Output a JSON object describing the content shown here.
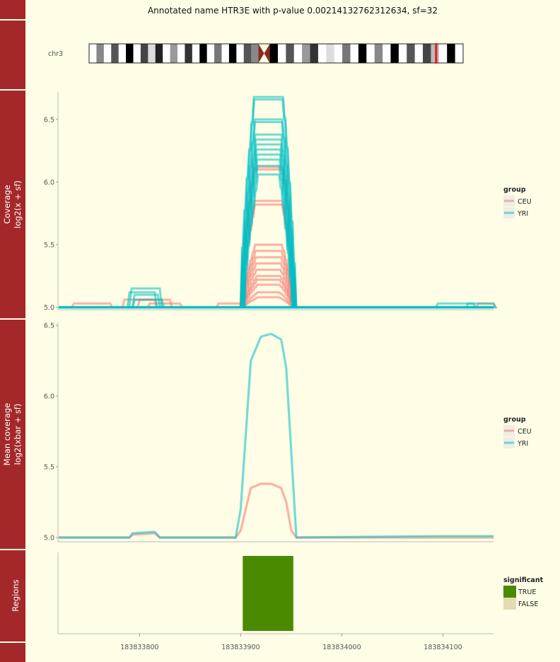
{
  "title": "Annotated name HTR3E with p-value 0.00214132762312634, sf=32",
  "ideogram": {
    "chrom_label": "chr3"
  },
  "colors": {
    "background": "#fffde6",
    "strip": "#a4282a",
    "CEU": "#f8766d",
    "YRI": "#00bfc4",
    "sig_true": "#4a8a00",
    "sig_false": "#e6dab1",
    "highlight": "#e41a1c"
  },
  "x_axis": {
    "range": [
      183833720,
      183834150
    ],
    "ticks": [
      183833800,
      183833900,
      183834000,
      183834100
    ],
    "tick_labels": [
      "183833800",
      "183833900",
      "183834000",
      "183834100"
    ]
  },
  "chart_data": [
    {
      "type": "line",
      "panel": "Coverage",
      "strip_label": [
        "Coverage",
        "log2(x + sf)"
      ],
      "ylim": [
        4.98,
        6.72
      ],
      "y_ticks": [
        5.0,
        5.5,
        6.0,
        6.5
      ],
      "y_tick_labels": [
        "5.0",
        "5.5",
        "6.0",
        "6.5"
      ],
      "legend": {
        "title": "group",
        "entries": [
          "CEU",
          "YRI"
        ]
      },
      "series": [
        {
          "name": "YRI",
          "peaks": [
            6.68,
            6.66,
            6.5,
            6.48,
            6.38,
            6.34,
            6.3,
            6.26,
            6.22,
            6.18,
            6.13,
            6.06
          ]
        },
        {
          "name": "CEU",
          "peaks": [
            6.12,
            6.1,
            5.85,
            5.82,
            5.5,
            5.45,
            5.4,
            5.35,
            5.3,
            5.25,
            5.22,
            5.18,
            5.12,
            5.08
          ]
        }
      ]
    },
    {
      "type": "line",
      "panel": "Mean coverage",
      "strip_label": [
        "Mean coverage",
        "log2(xbar + sf)"
      ],
      "ylim": [
        4.97,
        6.52
      ],
      "y_ticks": [
        5.0,
        5.5,
        6.0,
        6.5
      ],
      "y_tick_labels": [
        "5.0",
        "5.5",
        "6.0",
        "6.5"
      ],
      "legend": {
        "title": "group",
        "entries": [
          "CEU",
          "YRI"
        ]
      },
      "series": [
        {
          "name": "YRI",
          "x": [
            183833720,
            183833790,
            183833793,
            183833815,
            183833820,
            183833895,
            183833900,
            183833910,
            183833920,
            183833930,
            183833940,
            183833945,
            183833950,
            183833955,
            183834100,
            183834150
          ],
          "y": [
            5.0,
            5.0,
            5.03,
            5.04,
            5.0,
            5.0,
            5.2,
            6.25,
            6.42,
            6.44,
            6.4,
            6.2,
            5.6,
            5.0,
            5.01,
            5.01
          ]
        },
        {
          "name": "CEU",
          "x": [
            183833720,
            183833790,
            183833793,
            183833815,
            183833820,
            183833895,
            183833900,
            183833910,
            183833920,
            183833930,
            183833940,
            183833945,
            183833950,
            183833955,
            183834100,
            183834150
          ],
          "y": [
            5.0,
            5.0,
            5.02,
            5.03,
            5.0,
            5.0,
            5.05,
            5.35,
            5.38,
            5.38,
            5.35,
            5.25,
            5.05,
            5.0,
            5.0,
            5.0
          ]
        }
      ]
    },
    {
      "type": "bar",
      "panel": "Regions",
      "strip_label": [
        "Regions"
      ],
      "legend": {
        "title": "significant",
        "entries": [
          "TRUE",
          "FALSE"
        ]
      },
      "regions": [
        {
          "start": 183833902,
          "end": 183833952,
          "significant": "TRUE"
        }
      ]
    }
  ]
}
